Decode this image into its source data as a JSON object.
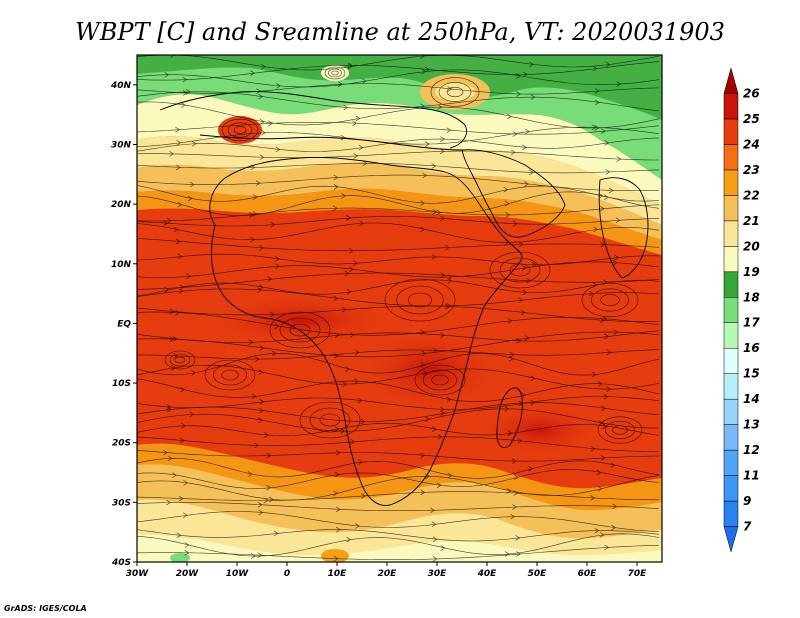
{
  "title": "WBPT [C] and Sreamline at 250hPa, VT: 2020031903",
  "credit": "GrADS: IGES/COLA",
  "map": {
    "lon_range": [
      -30,
      75
    ],
    "lat_range": [
      -40,
      45
    ],
    "lon_ticks": [
      {
        "value": -30,
        "label": "30W"
      },
      {
        "value": -20,
        "label": "20W"
      },
      {
        "value": -10,
        "label": "10W"
      },
      {
        "value": 0,
        "label": "0"
      },
      {
        "value": 10,
        "label": "10E"
      },
      {
        "value": 20,
        "label": "20E"
      },
      {
        "value": 30,
        "label": "30E"
      },
      {
        "value": 40,
        "label": "40E"
      },
      {
        "value": 50,
        "label": "50E"
      },
      {
        "value": 60,
        "label": "60E"
      },
      {
        "value": 70,
        "label": "70E"
      }
    ],
    "lat_ticks": [
      {
        "value": 40,
        "label": "40N"
      },
      {
        "value": 30,
        "label": "30N"
      },
      {
        "value": 20,
        "label": "20N"
      },
      {
        "value": 10,
        "label": "10N"
      },
      {
        "value": 0,
        "label": "EQ"
      },
      {
        "value": -10,
        "label": "10S"
      },
      {
        "value": -20,
        "label": "20S"
      },
      {
        "value": -30,
        "label": "30S"
      },
      {
        "value": -40,
        "label": "40S"
      }
    ]
  },
  "colorbar": {
    "levels": [
      "7",
      "9",
      "11",
      "12",
      "13",
      "14",
      "15",
      "16",
      "17",
      "18",
      "19",
      "20",
      "21",
      "22",
      "23",
      "24",
      "25",
      "26"
    ],
    "colors": [
      "#1e6eeb",
      "#2882f0",
      "#3c96f5",
      "#50a5f5",
      "#78b9fa",
      "#96d2fa",
      "#b4f0fa",
      "#e1ffff",
      "#b4fab4",
      "#78dc78",
      "#37a537",
      "#fafabe",
      "#fae696",
      "#f5c05a",
      "#f5a014",
      "#f56e14",
      "#e63c0f",
      "#c8140a",
      "#a50000"
    ]
  }
}
